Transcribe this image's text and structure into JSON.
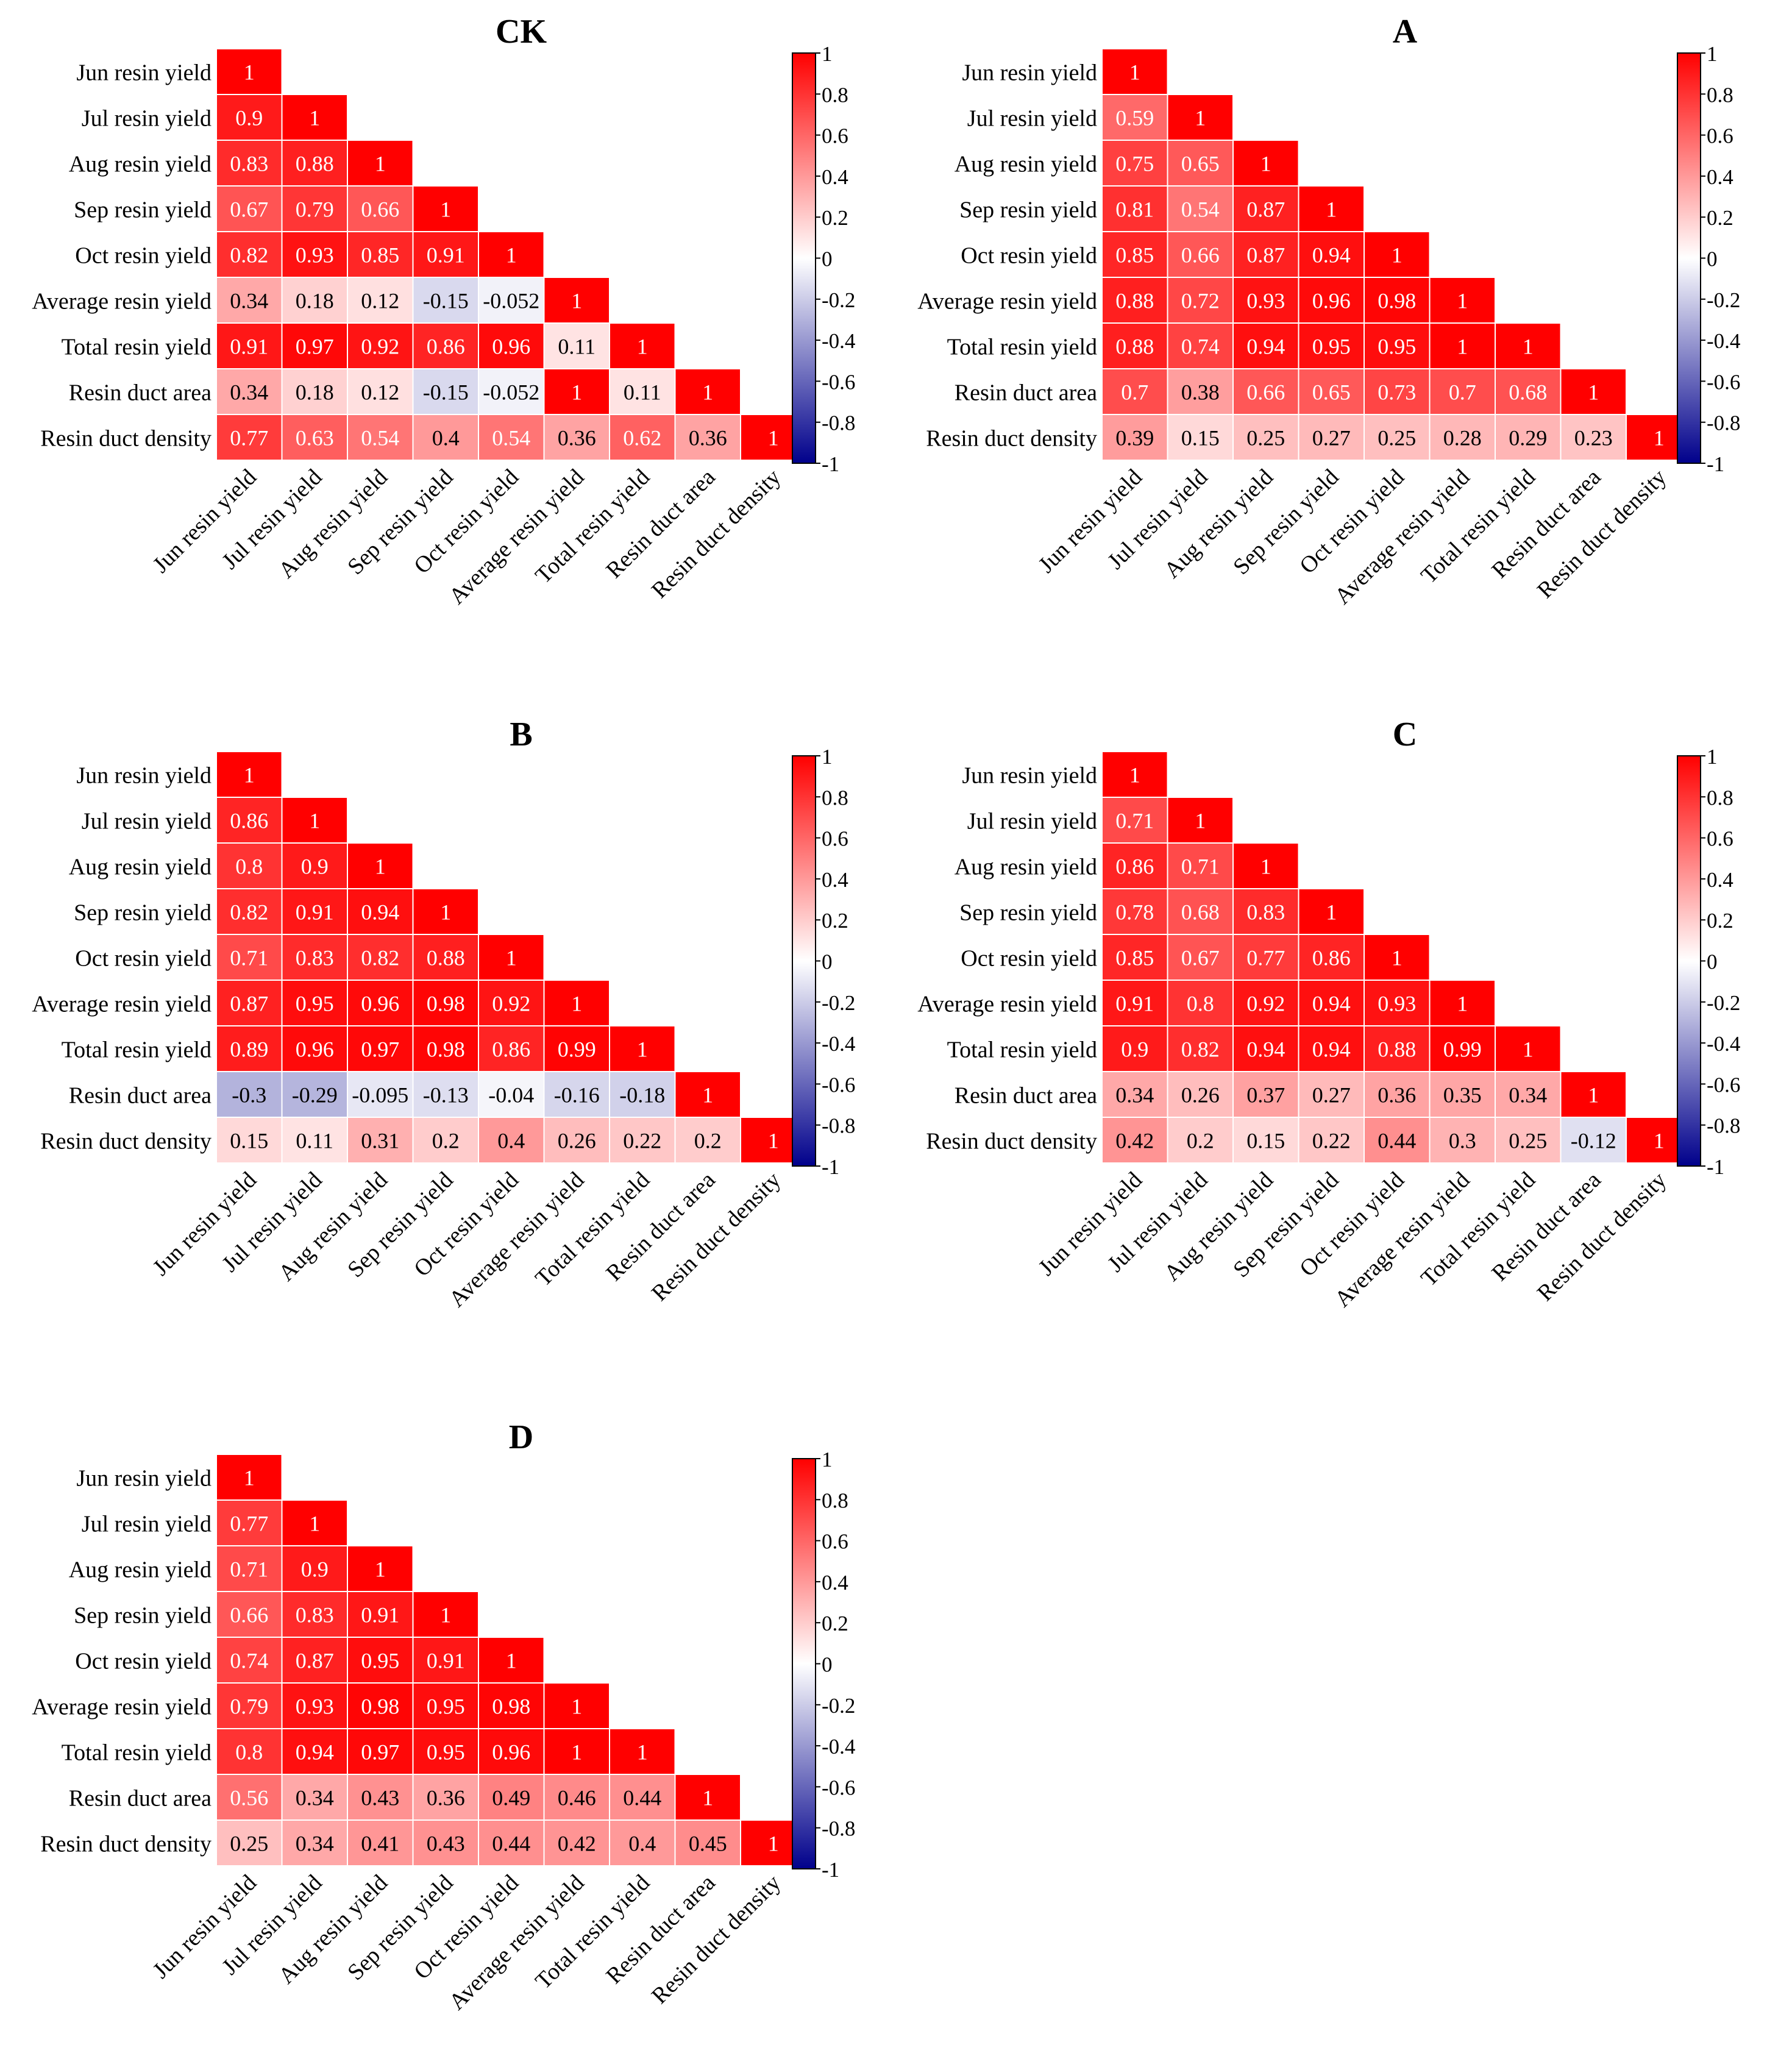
{
  "colorbar": {
    "ticks": [
      "1",
      "0.8",
      "0.6",
      "0.4",
      "0.2",
      "0",
      "-0.2",
      "-0.4",
      "-0.6",
      "-0.8",
      "-1"
    ]
  },
  "colors": {
    "positive": "#ff0000",
    "zero": "#ffffff",
    "negative": "#00008b",
    "cell_border": "#ffffff",
    "text_dark": "#000000",
    "text_light": "#ffffff"
  },
  "chart_data": [
    {
      "type": "heatmap",
      "title": "CK",
      "variables": [
        "Jun resin yield",
        "Jul resin yield",
        "Aug resin yield",
        "Sep resin yield",
        "Oct resin yield",
        "Average resin yield",
        "Total resin yield",
        "Resin duct area",
        "Resin duct density"
      ],
      "labels": [
        [
          "1"
        ],
        [
          "0.9",
          "1"
        ],
        [
          "0.83",
          "0.88",
          "1"
        ],
        [
          "0.67",
          "0.79",
          "0.66",
          "1"
        ],
        [
          "0.82",
          "0.93",
          "0.85",
          "0.91",
          "1"
        ],
        [
          "0.34",
          "0.18",
          "0.12",
          "-0.15",
          "-0.052",
          "1"
        ],
        [
          "0.91",
          "0.97",
          "0.92",
          "0.86",
          "0.96",
          "0.11",
          "1"
        ],
        [
          "0.34",
          "0.18",
          "0.12",
          "-0.15",
          "-0.052",
          "1",
          "0.11",
          "1"
        ],
        [
          "0.77",
          "0.63",
          "0.54",
          "0.4",
          "0.54",
          "0.36",
          "0.62",
          "0.36",
          "1"
        ]
      ],
      "value_range": [
        -1,
        1
      ]
    },
    {
      "type": "heatmap",
      "title": "A",
      "variables": [
        "Jun resin yield",
        "Jul resin yield",
        "Aug resin yield",
        "Sep resin yield",
        "Oct resin yield",
        "Average resin yield",
        "Total resin yield",
        "Resin duct area",
        "Resin duct density"
      ],
      "labels": [
        [
          "1"
        ],
        [
          "0.59",
          "1"
        ],
        [
          "0.75",
          "0.65",
          "1"
        ],
        [
          "0.81",
          "0.54",
          "0.87",
          "1"
        ],
        [
          "0.85",
          "0.66",
          "0.87",
          "0.94",
          "1"
        ],
        [
          "0.88",
          "0.72",
          "0.93",
          "0.96",
          "0.98",
          "1"
        ],
        [
          "0.88",
          "0.74",
          "0.94",
          "0.95",
          "0.95",
          "1",
          "1"
        ],
        [
          "0.7",
          "0.38",
          "0.66",
          "0.65",
          "0.73",
          "0.7",
          "0.68",
          "1"
        ],
        [
          "0.39",
          "0.15",
          "0.25",
          "0.27",
          "0.25",
          "0.28",
          "0.29",
          "0.23",
          "1"
        ]
      ],
      "value_range": [
        -1,
        1
      ]
    },
    {
      "type": "heatmap",
      "title": "B",
      "variables": [
        "Jun resin yield",
        "Jul resin yield",
        "Aug resin yield",
        "Sep resin yield",
        "Oct resin yield",
        "Average resin yield",
        "Total resin yield",
        "Resin duct area",
        "Resin duct density"
      ],
      "labels": [
        [
          "1"
        ],
        [
          "0.86",
          "1"
        ],
        [
          "0.8",
          "0.9",
          "1"
        ],
        [
          "0.82",
          "0.91",
          "0.94",
          "1"
        ],
        [
          "0.71",
          "0.83",
          "0.82",
          "0.88",
          "1"
        ],
        [
          "0.87",
          "0.95",
          "0.96",
          "0.98",
          "0.92",
          "1"
        ],
        [
          "0.89",
          "0.96",
          "0.97",
          "0.98",
          "0.86",
          "0.99",
          "1"
        ],
        [
          "-0.3",
          "-0.29",
          "-0.095",
          "-0.13",
          "-0.04",
          "-0.16",
          "-0.18",
          "1"
        ],
        [
          "0.15",
          "0.11",
          "0.31",
          "0.2",
          "0.4",
          "0.26",
          "0.22",
          "0.2",
          "1"
        ]
      ],
      "value_range": [
        -1,
        1
      ]
    },
    {
      "type": "heatmap",
      "title": "C",
      "variables": [
        "Jun resin yield",
        "Jul resin yield",
        "Aug resin yield",
        "Sep resin yield",
        "Oct resin yield",
        "Average resin yield",
        "Total resin yield",
        "Resin duct area",
        "Resin duct density"
      ],
      "labels": [
        [
          "1"
        ],
        [
          "0.71",
          "1"
        ],
        [
          "0.86",
          "0.71",
          "1"
        ],
        [
          "0.78",
          "0.68",
          "0.83",
          "1"
        ],
        [
          "0.85",
          "0.67",
          "0.77",
          "0.86",
          "1"
        ],
        [
          "0.91",
          "0.8",
          "0.92",
          "0.94",
          "0.93",
          "1"
        ],
        [
          "0.9",
          "0.82",
          "0.94",
          "0.94",
          "0.88",
          "0.99",
          "1"
        ],
        [
          "0.34",
          "0.26",
          "0.37",
          "0.27",
          "0.36",
          "0.35",
          "0.34",
          "1"
        ],
        [
          "0.42",
          "0.2",
          "0.15",
          "0.22",
          "0.44",
          "0.3",
          "0.25",
          "-0.12",
          "1"
        ]
      ],
      "value_range": [
        -1,
        1
      ]
    },
    {
      "type": "heatmap",
      "title": "D",
      "variables": [
        "Jun resin yield",
        "Jul resin yield",
        "Aug resin yield",
        "Sep resin yield",
        "Oct resin yield",
        "Average resin yield",
        "Total resin yield",
        "Resin duct area",
        "Resin duct density"
      ],
      "labels": [
        [
          "1"
        ],
        [
          "0.77",
          "1"
        ],
        [
          "0.71",
          "0.9",
          "1"
        ],
        [
          "0.66",
          "0.83",
          "0.91",
          "1"
        ],
        [
          "0.74",
          "0.87",
          "0.95",
          "0.91",
          "1"
        ],
        [
          "0.79",
          "0.93",
          "0.98",
          "0.95",
          "0.98",
          "1"
        ],
        [
          "0.8",
          "0.94",
          "0.97",
          "0.95",
          "0.96",
          "1",
          "1"
        ],
        [
          "0.56",
          "0.34",
          "0.43",
          "0.36",
          "0.49",
          "0.46",
          "0.44",
          "1"
        ],
        [
          "0.25",
          "0.34",
          "0.41",
          "0.43",
          "0.44",
          "0.42",
          "0.4",
          "0.45",
          "1"
        ]
      ],
      "value_range": [
        -1,
        1
      ]
    }
  ]
}
